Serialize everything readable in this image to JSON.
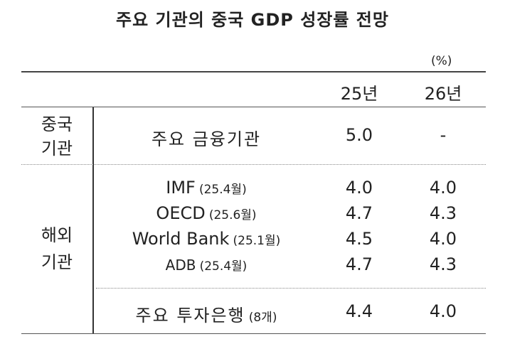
{
  "title": "주요 기관의 중국 GDP 성장률 전망",
  "unit": "(%)",
  "columns": [
    "25년",
    "26년"
  ],
  "groups": [
    {
      "label": [
        "중국",
        "기관"
      ],
      "rows": [
        {
          "name": "주요 금융기관",
          "note": "",
          "v25": "5.0",
          "v26": "-"
        }
      ]
    },
    {
      "label": [
        "해외",
        "기관"
      ],
      "rows": [
        {
          "name": "IMF",
          "note": "(25.4월)",
          "v25": "4.0",
          "v26": "4.0"
        },
        {
          "name": "OECD",
          "note": "(25.6월)",
          "v25": "4.7",
          "v26": "4.3"
        },
        {
          "name": "World Bank",
          "note": "(25.1월)",
          "v25": "4.5",
          "v26": "4.0"
        },
        {
          "name": "ADB",
          "note": "(25.4월)",
          "v25": "4.7",
          "v26": "4.3"
        },
        {
          "name": "주요 투자은행",
          "note": "(8개)",
          "v25": "4.4",
          "v26": "4.0"
        }
      ]
    }
  ]
}
